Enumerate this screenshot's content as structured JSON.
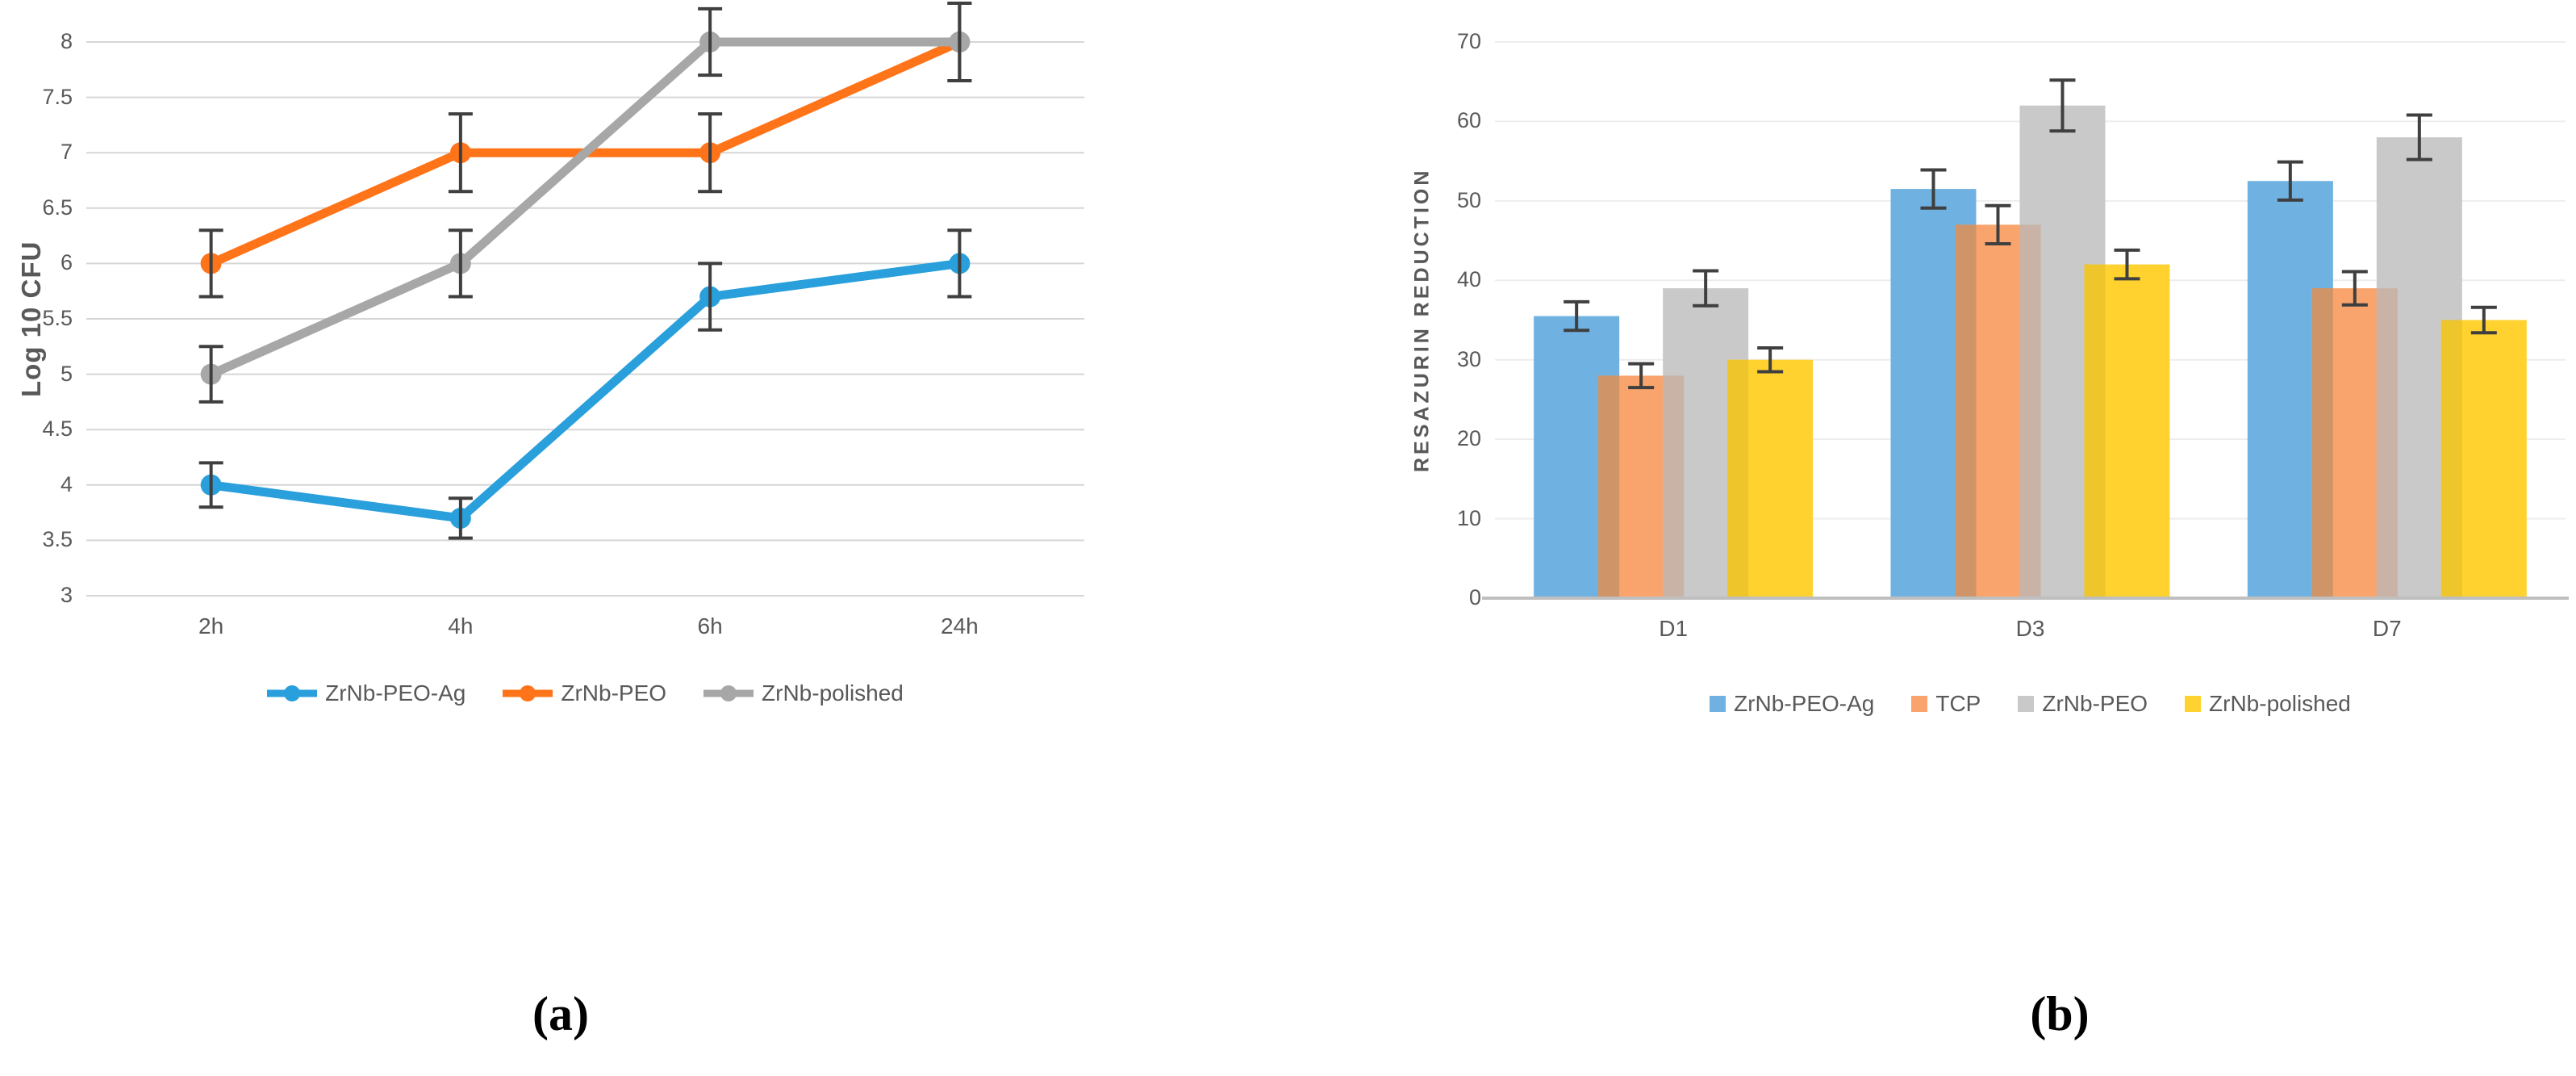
{
  "captions": {
    "a": "(a)",
    "b": "(b)"
  },
  "styles": {
    "grid_color_a": "#D6D6D6",
    "grid_color_b": "#EDEDED",
    "axis_line_color": "#BFBFBF",
    "error_bar_color": "#3F3F3F",
    "tick_text_color": "#595959"
  },
  "chart_data": [
    {
      "type": "line",
      "panel": "a",
      "title": "",
      "xlabel": "",
      "ylabel": "Log 10 CFU",
      "categories": [
        "2h",
        "4h",
        "6h",
        "24h"
      ],
      "ylim": [
        3,
        8
      ],
      "ytick_step": 0.5,
      "grid": true,
      "legend_position": "bottom",
      "series": [
        {
          "name": "ZrNb-PEO-Ag",
          "color": "#299FDC",
          "values": [
            4.0,
            3.7,
            5.7,
            6.0
          ],
          "errors": [
            0.2,
            0.18,
            0.3,
            0.3
          ]
        },
        {
          "name": "ZrNb-PEO",
          "color": "#FF7419",
          "values": [
            6.0,
            7.0,
            7.0,
            8.0
          ],
          "errors": [
            0.3,
            0.35,
            0.35,
            0.35
          ]
        },
        {
          "name": "ZrNb-polished",
          "color": "#A7A7A7",
          "values": [
            5.0,
            6.0,
            8.0,
            8.0
          ],
          "errors": [
            0.25,
            0.3,
            0.3,
            0.35
          ]
        }
      ]
    },
    {
      "type": "bar",
      "panel": "b",
      "title": "",
      "xlabel": "",
      "ylabel": "RESAZURIN REDUCTION",
      "categories": [
        "D1",
        "D3",
        "D7"
      ],
      "ylim": [
        0,
        70
      ],
      "ytick_step": 10,
      "grid": true,
      "legend_position": "bottom",
      "series": [
        {
          "name": "ZrNb-PEO-Ag",
          "color": "#6FB2E2",
          "values": [
            35.5,
            51.5,
            52.5
          ],
          "errors": [
            1.8,
            2.4,
            2.4
          ]
        },
        {
          "name": "TCP",
          "color": "#F9A46C",
          "values": [
            28.0,
            47.0,
            39.0
          ],
          "errors": [
            1.5,
            2.4,
            2.1
          ]
        },
        {
          "name": "ZrNb-PEO",
          "color": "#C9C9C9",
          "values": [
            39.0,
            62.0,
            58.0
          ],
          "errors": [
            2.2,
            3.2,
            2.8
          ]
        },
        {
          "name": "ZrNb-polished",
          "color": "#FFD22F",
          "values": [
            30.0,
            42.0,
            35.0
          ],
          "errors": [
            1.5,
            1.8,
            1.6
          ]
        }
      ]
    }
  ]
}
